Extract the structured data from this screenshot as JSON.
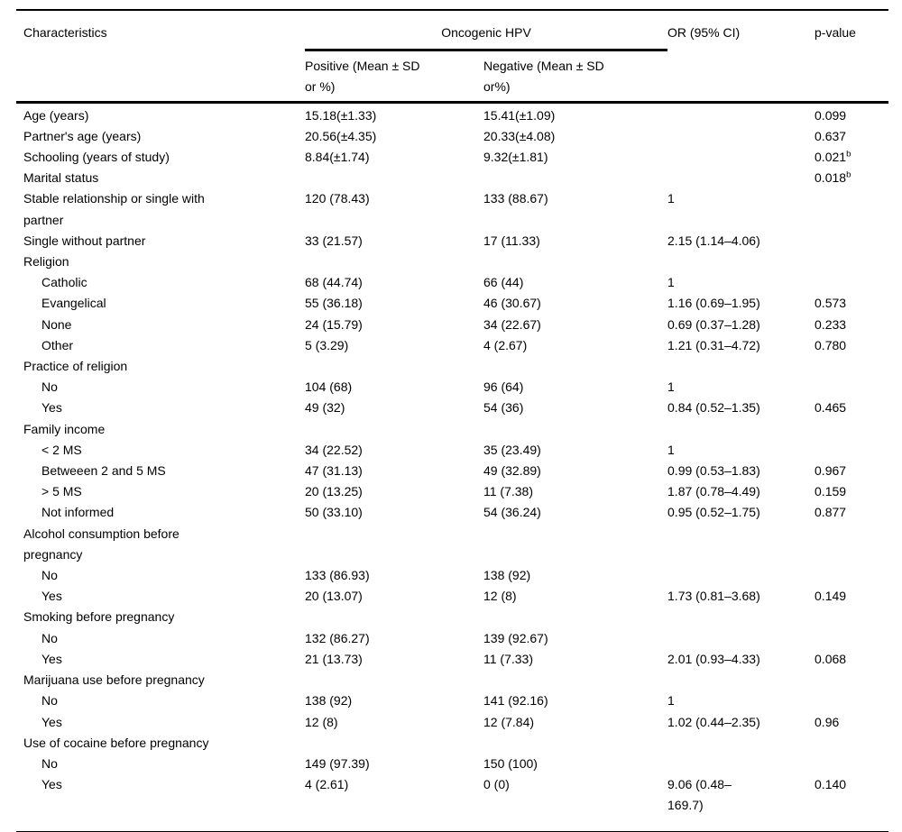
{
  "page": {
    "background_color": "#ffffff",
    "text_color": "#000000",
    "rule_color": "#000000"
  },
  "table": {
    "header": {
      "characteristics": "Characteristics",
      "group": "Oncogenic HPV",
      "positive": "Positive (Mean ± SD\nor %)",
      "negative": "Negative (Mean ± SD\nor%)",
      "or_ci": "OR (95% CI)",
      "p_value": "p-value"
    },
    "rows": [
      {
        "label": "Age (years)",
        "indent": false,
        "pos": "15.18(±1.33)",
        "neg": "15.41(±1.09)",
        "or": "",
        "p": "0.099",
        "p_sup": ""
      },
      {
        "label": "Partner's age (years)",
        "indent": false,
        "pos": "20.56(±4.35)",
        "neg": "20.33(±4.08)",
        "or": "",
        "p": "0.637",
        "p_sup": ""
      },
      {
        "label": "Schooling (years of study)",
        "indent": false,
        "pos": "8.84(±1.74)",
        "neg": "9.32(±1.81)",
        "or": "",
        "p": "0.021",
        "p_sup": "b"
      },
      {
        "label": "Marital status",
        "indent": false,
        "pos": "",
        "neg": "",
        "or": "",
        "p": "0.018",
        "p_sup": "b"
      },
      {
        "label": "Stable relationship or single with\npartner",
        "indent": false,
        "pos": "120 (78.43)",
        "neg": "133 (88.67)",
        "or": "1",
        "p": "",
        "p_sup": ""
      },
      {
        "label": "Single without partner",
        "indent": false,
        "pos": "33 (21.57)",
        "neg": "17 (11.33)",
        "or": "2.15 (1.14–4.06)",
        "p": "",
        "p_sup": ""
      },
      {
        "label": "Religion",
        "indent": false,
        "pos": "",
        "neg": "",
        "or": "",
        "p": "",
        "p_sup": ""
      },
      {
        "label": "Catholic",
        "indent": true,
        "pos": "68 (44.74)",
        "neg": "66 (44)",
        "or": "1",
        "p": "",
        "p_sup": ""
      },
      {
        "label": "Evangelical",
        "indent": true,
        "pos": "55 (36.18)",
        "neg": "46 (30.67)",
        "or": "1.16 (0.69–1.95)",
        "p": "0.573",
        "p_sup": ""
      },
      {
        "label": "None",
        "indent": true,
        "pos": "24 (15.79)",
        "neg": "34 (22.67)",
        "or": "0.69 (0.37–1.28)",
        "p": "0.233",
        "p_sup": ""
      },
      {
        "label": "Other",
        "indent": true,
        "pos": "5 (3.29)",
        "neg": "4 (2.67)",
        "or": "1.21 (0.31–4.72)",
        "p": "0.780",
        "p_sup": ""
      },
      {
        "label": "Practice of religion",
        "indent": false,
        "pos": "",
        "neg": "",
        "or": "",
        "p": "",
        "p_sup": ""
      },
      {
        "label": "No",
        "indent": true,
        "pos": "104 (68)",
        "neg": "96 (64)",
        "or": "1",
        "p": "",
        "p_sup": ""
      },
      {
        "label": "Yes",
        "indent": true,
        "pos": "49 (32)",
        "neg": "54 (36)",
        "or": "0.84 (0.52–1.35)",
        "p": "0.465",
        "p_sup": ""
      },
      {
        "label": "Family income",
        "indent": false,
        "pos": "",
        "neg": "",
        "or": "",
        "p": "",
        "p_sup": ""
      },
      {
        "label": "< 2 MS",
        "indent": true,
        "pos": "34 (22.52)",
        "neg": "35 (23.49)",
        "or": "1",
        "p": "",
        "p_sup": ""
      },
      {
        "label": "Betweeen 2 and 5 MS",
        "indent": true,
        "pos": "47 (31.13)",
        "neg": "49 (32.89)",
        "or": "0.99 (0.53–1.83)",
        "p": "0.967",
        "p_sup": ""
      },
      {
        "label": "> 5 MS",
        "indent": true,
        "pos": "20 (13.25)",
        "neg": "11 (7.38)",
        "or": "1.87 (0.78–4.49)",
        "p": "0.159",
        "p_sup": ""
      },
      {
        "label": "Not informed",
        "indent": true,
        "pos": "50 (33.10)",
        "neg": "54 (36.24)",
        "or": "0.95 (0.52–1.75)",
        "p": "0.877",
        "p_sup": ""
      },
      {
        "label": "Alcohol consumption before\npregnancy",
        "indent": false,
        "pos": "",
        "neg": "",
        "or": "",
        "p": "",
        "p_sup": ""
      },
      {
        "label": "No",
        "indent": true,
        "pos": "133 (86.93)",
        "neg": "138 (92)",
        "or": "",
        "p": "",
        "p_sup": ""
      },
      {
        "label": "Yes",
        "indent": true,
        "pos": "20 (13.07)",
        "neg": "12 (8)",
        "or": "1.73 (0.81–3.68)",
        "p": "0.149",
        "p_sup": ""
      },
      {
        "label": "Smoking before pregnancy",
        "indent": false,
        "pos": "",
        "neg": "",
        "or": "",
        "p": "",
        "p_sup": ""
      },
      {
        "label": "No",
        "indent": true,
        "pos": "132 (86.27)",
        "neg": "139 (92.67)",
        "or": "",
        "p": "",
        "p_sup": ""
      },
      {
        "label": "Yes",
        "indent": true,
        "pos": "21 (13.73)",
        "neg": "11 (7.33)",
        "or": "2.01 (0.93–4.33)",
        "p": "0.068",
        "p_sup": ""
      },
      {
        "label": "Marijuana use before pregnancy",
        "indent": false,
        "pos": "",
        "neg": "",
        "or": "",
        "p": "",
        "p_sup": ""
      },
      {
        "label": "No",
        "indent": true,
        "pos": "138 (92)",
        "neg": "141 (92.16)",
        "or": "1",
        "p": "",
        "p_sup": ""
      },
      {
        "label": "Yes",
        "indent": true,
        "pos": "12 (8)",
        "neg": "12 (7.84)",
        "or": "1.02 (0.44–2.35)",
        "p": "0.96",
        "p_sup": ""
      },
      {
        "label": "Use of cocaine before pregnancy",
        "indent": false,
        "pos": "",
        "neg": "",
        "or": "",
        "p": "",
        "p_sup": ""
      },
      {
        "label": "No",
        "indent": true,
        "pos": "149 (97.39)",
        "neg": "150 (100)",
        "or": "",
        "p": "",
        "p_sup": ""
      },
      {
        "label": "Yes",
        "indent": true,
        "pos": "4 (2.61)",
        "neg": "0 (0)",
        "or": "9.06 (0.48–\n169.7)",
        "p": "0.140",
        "p_sup": ""
      }
    ]
  }
}
